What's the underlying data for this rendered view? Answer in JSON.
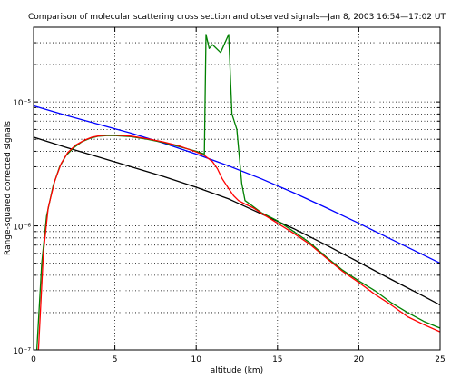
{
  "chart_data": {
    "type": "line",
    "title": "Comparison of molecular scattering cross section and observed signals—Jan 8, 2003 16:54—17:02 UT",
    "xlabel": "altitude (km)",
    "ylabel": "Range-squared corrected signals",
    "xlim": [
      0,
      25
    ],
    "ylim": [
      1e-07,
      4e-05
    ],
    "yscale": "log",
    "grid": "dotted horizontal",
    "x_ticks": [
      "0",
      "5",
      "10",
      "15",
      "20",
      "25"
    ],
    "y_ticks": [
      "10⁻⁷",
      "10⁻⁶",
      "10⁻⁵"
    ],
    "series": [
      {
        "color": "#0000ff",
        "x": [
          0,
          2,
          4,
          6,
          8,
          10,
          12,
          14,
          16,
          18,
          20,
          22,
          24,
          25
        ],
        "y": [
          9.3e-06,
          7.8e-06,
          6.6e-06,
          5.6e-06,
          4.65e-06,
          3.8e-06,
          3.05e-06,
          2.4e-06,
          1.85e-06,
          1.4e-06,
          1.05e-06,
          7.8e-07,
          5.8e-07,
          5e-07
        ]
      },
      {
        "color": "#000000",
        "x": [
          0,
          2,
          4,
          6,
          8,
          10,
          12,
          14,
          16,
          18,
          20,
          22,
          24,
          25
        ],
        "y": [
          5.2e-06,
          4.3e-06,
          3.6e-06,
          3e-06,
          2.5e-06,
          2.05e-06,
          1.65e-06,
          1.25e-06,
          9.5e-07,
          7e-07,
          5.1e-07,
          3.7e-07,
          2.7e-07,
          2.3e-07
        ]
      },
      {
        "color": "#008000",
        "x": [
          0.2,
          0.5,
          0.8,
          1.2,
          1.6,
          2.0,
          2.5,
          3.0,
          3.5,
          4.0,
          4.5,
          5.0,
          6.0,
          7.0,
          8.0,
          9.0,
          10.0,
          10.5,
          10.6,
          10.8,
          11.0,
          11.5,
          12.0,
          12.2,
          12.5,
          12.8,
          13.0,
          13.3,
          14,
          15,
          16,
          17,
          18,
          19,
          20,
          21,
          22,
          23,
          24,
          25
        ],
        "y": [
          1e-07,
          5e-07,
          1.2e-06,
          2.1e-06,
          3e-06,
          3.7e-06,
          4.3e-06,
          4.8e-06,
          5.1e-06,
          5.3e-06,
          5.35e-06,
          5.35e-06,
          5.25e-06,
          5e-06,
          4.7e-06,
          4.35e-06,
          4e-06,
          3.8e-06,
          3.5e-05,
          2.7e-05,
          2.9e-05,
          2.5e-05,
          3.5e-05,
          8e-06,
          6e-06,
          2.2e-06,
          1.6e-06,
          1.5e-06,
          1.28e-06,
          1.1e-06,
          9e-07,
          7.3e-07,
          5.6e-07,
          4.4e-07,
          3.6e-07,
          3e-07,
          2.4e-07,
          2e-07,
          1.7e-07,
          1.5e-07
        ]
      },
      {
        "color": "#ff0000",
        "x": [
          0.3,
          0.6,
          0.9,
          1.3,
          1.7,
          2.1,
          2.6,
          3.1,
          3.6,
          4.1,
          4.6,
          5.0,
          6.0,
          7.0,
          8.0,
          9.0,
          10.0,
          10.5,
          11.0,
          11.3,
          11.6,
          12.0,
          12.3,
          12.6,
          13.0,
          13.5,
          14,
          15,
          16,
          17,
          18,
          19,
          20,
          21,
          22,
          23,
          24,
          25
        ],
        "y": [
          1e-07,
          6e-07,
          1.4e-06,
          2.3e-06,
          3.2e-06,
          3.9e-06,
          4.5e-06,
          4.9e-06,
          5.2e-06,
          5.35e-06,
          5.4e-06,
          5.4e-06,
          5.3e-06,
          5.05e-06,
          4.75e-06,
          4.4e-06,
          3.95e-06,
          3.7e-06,
          3.3e-06,
          2.9e-06,
          2.4e-06,
          2e-06,
          1.75e-06,
          1.6e-06,
          1.5e-06,
          1.4e-06,
          1.27e-06,
          1.05e-06,
          8.7e-07,
          7.1e-07,
          5.5e-07,
          4.3e-07,
          3.5e-07,
          2.8e-07,
          2.3e-07,
          1.85e-07,
          1.6e-07,
          1.4e-07
        ]
      }
    ]
  }
}
